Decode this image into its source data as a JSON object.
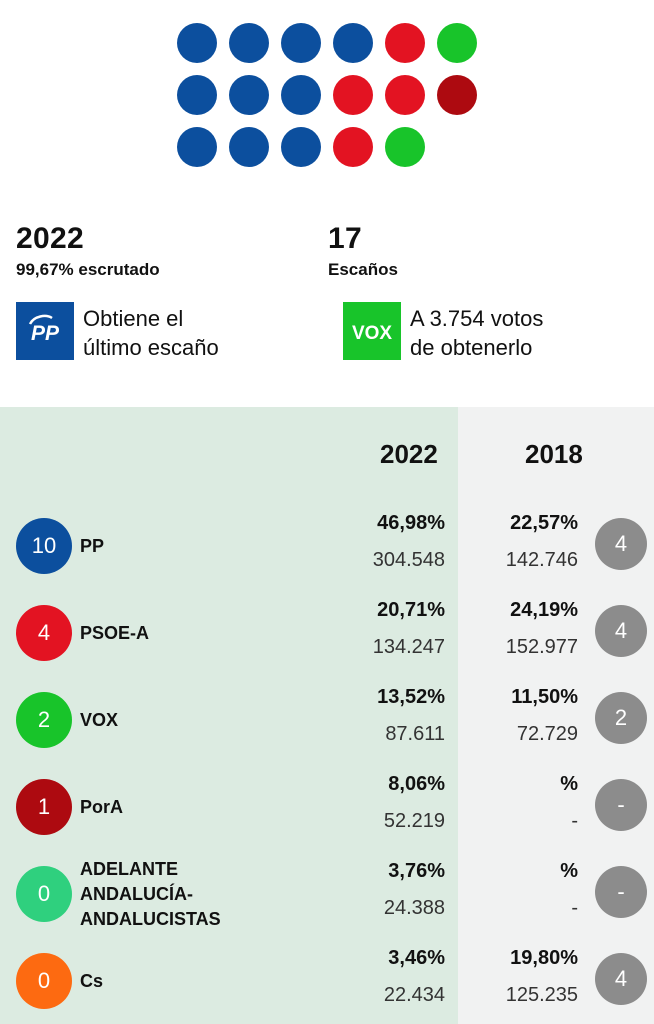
{
  "seat_dots": [
    {
      "color": "#0c4f9e"
    },
    {
      "color": "#0c4f9e"
    },
    {
      "color": "#0c4f9e"
    },
    {
      "color": "#0c4f9e"
    },
    {
      "color": "#e31322"
    },
    {
      "color": "#18c42a"
    },
    {
      "color": "#0c4f9e"
    },
    {
      "color": "#0c4f9e"
    },
    {
      "color": "#0c4f9e"
    },
    {
      "color": "#e31322"
    },
    {
      "color": "#e31322"
    },
    {
      "color": "#ad0a10"
    },
    {
      "color": "#0c4f9e"
    },
    {
      "color": "#0c4f9e"
    },
    {
      "color": "#0c4f9e"
    },
    {
      "color": "#e31322"
    },
    {
      "color": "#18c42a"
    }
  ],
  "summary": {
    "year": "2022",
    "counted": "99,67% escrutado",
    "seats_total": "17",
    "seats_label": "Escaños"
  },
  "last_seat": {
    "logo_text": "PP",
    "logo_color": "#0c4f9e",
    "line1": "Obtiene el",
    "line2": "último escaño"
  },
  "next_seat": {
    "logo_text": "VOX",
    "logo_color": "#18c42a",
    "line1": "A 3.754 votos",
    "line2": "de obtenerlo"
  },
  "table": {
    "col_current": "2022",
    "col_previous": "2018",
    "rows": [
      {
        "seats": "10",
        "color": "#0c4f9e",
        "name": [
          "PP"
        ],
        "pct": "46,98%",
        "votes": "304.548",
        "prev_pct": "22,57%",
        "prev_votes": "142.746",
        "prev_seats": "4"
      },
      {
        "seats": "4",
        "color": "#e31322",
        "name": [
          "PSOE-A"
        ],
        "pct": "20,71%",
        "votes": "134.247",
        "prev_pct": "24,19%",
        "prev_votes": "152.977",
        "prev_seats": "4"
      },
      {
        "seats": "2",
        "color": "#18c42a",
        "name": [
          "VOX"
        ],
        "pct": "13,52%",
        "votes": "87.611",
        "prev_pct": "11,50%",
        "prev_votes": "72.729",
        "prev_seats": "2"
      },
      {
        "seats": "1",
        "color": "#ad0a10",
        "name": [
          "PorA"
        ],
        "pct": "8,06%",
        "votes": "52.219",
        "prev_pct": "%",
        "prev_votes": "-",
        "prev_seats": "-"
      },
      {
        "seats": "0",
        "color": "#2fd07e",
        "name": [
          "ADELANTE",
          "ANDALUCÍA-",
          "ANDALUCISTAS"
        ],
        "pct": "3,76%",
        "votes": "24.388",
        "prev_pct": "%",
        "prev_votes": "-",
        "prev_seats": "-"
      },
      {
        "seats": "0",
        "color": "#fd6a11",
        "name": [
          "Cs"
        ],
        "pct": "3,46%",
        "votes": "22.434",
        "prev_pct": "19,80%",
        "prev_votes": "125.235",
        "prev_seats": "4"
      }
    ]
  }
}
